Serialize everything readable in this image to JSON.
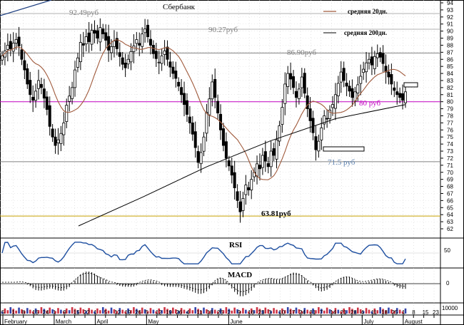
{
  "chart_data": {
    "type": "candlestick",
    "title": "Сбербанк",
    "legend": [
      {
        "label": "средняя 20дн.",
        "color": "#a05a3c"
      },
      {
        "label": "средняя 200дн.",
        "color": "#000000"
      }
    ],
    "price_axis": {
      "min": 62,
      "max": 94,
      "ticks": [
        62,
        63,
        64,
        65,
        66,
        67,
        68,
        69,
        70,
        71,
        72,
        73,
        74,
        75,
        76,
        77,
        78,
        79,
        80,
        81,
        82,
        83,
        84,
        85,
        86,
        87,
        88,
        89,
        90,
        91,
        92,
        93,
        94
      ]
    },
    "horizontal_levels": [
      {
        "value": 92.49,
        "color": "#b0b0b0"
      },
      {
        "value": 90.27,
        "color": "#b0b0b0"
      },
      {
        "value": 86.9,
        "color": "#808080"
      },
      {
        "value": 80.0,
        "color": "#c000c0"
      },
      {
        "value": 71.5,
        "color": "#808080"
      },
      {
        "value": 63.81,
        "color": "#c8a000"
      }
    ],
    "annotations": [
      {
        "text": "92.49руб",
        "value": 92.49,
        "color": "#808080"
      },
      {
        "text": "90.27руб",
        "value": 90.27,
        "color": "#808080"
      },
      {
        "text": "86.90руб",
        "value": 86.9,
        "color": "#808080"
      },
      {
        "text": "80 руб",
        "value": 80.0,
        "color": "#c000c0"
      },
      {
        "text": "71.5 руб",
        "value": 71.5,
        "color": "#5a7fae"
      },
      {
        "text": "63.81руб",
        "value": 63.81,
        "color": "#000000"
      }
    ],
    "day_labels": [
      "5",
      "1",
      "8",
      "15",
      "24",
      "1",
      "9",
      "15",
      "22",
      "1",
      "5",
      "12",
      "19",
      "26",
      "5",
      "12",
      "19",
      "26",
      "4",
      "11",
      "18",
      "25",
      "2",
      "9",
      "16",
      "23",
      "3",
      "10",
      "17",
      "24",
      "31",
      "7",
      "14",
      "21",
      "28",
      "4",
      "11",
      "18",
      "25",
      "1",
      "8",
      "15",
      "23"
    ],
    "month_labels": [
      "February",
      "March",
      "April",
      "May",
      "June",
      "July",
      "August"
    ],
    "rsi": {
      "label": "RSI",
      "tick": 50,
      "color": "#1e4fa0"
    },
    "macd": {
      "label": "MACD",
      "tick": 0
    },
    "volume": {
      "tick": "10000"
    },
    "closes": [
      86.5,
      87.2,
      88.0,
      87.5,
      88.3,
      88.8,
      87.9,
      86.0,
      84.5,
      82.5,
      81.0,
      80.2,
      81.5,
      83.0,
      82.0,
      80.5,
      78.9,
      76.5,
      75.0,
      73.8,
      74.6,
      75.5,
      77.0,
      79.5,
      80.8,
      82.0,
      84.5,
      86.2,
      88.4,
      88.0,
      89.2,
      88.5,
      90.1,
      89.7,
      89.0,
      90.5,
      89.6,
      88.7,
      87.3,
      87.8,
      88.6,
      87.5,
      86.4,
      85.3,
      84.8,
      86.0,
      87.1,
      87.9,
      88.8,
      88.0,
      89.6,
      90.3,
      89.2,
      88.0,
      86.8,
      86.1,
      85.6,
      86.5,
      87.2,
      86.0,
      84.9,
      84.0,
      83.3,
      82.2,
      81.0,
      79.6,
      78.2,
      77.0,
      75.4,
      73.5,
      71.4,
      72.8,
      75.0,
      78.5,
      80.4,
      82.8,
      80.6,
      78.4,
      76.0,
      73.8,
      72.0,
      70.9,
      69.6,
      67.8,
      66.0,
      64.4,
      66.3,
      68.2,
      67.5,
      69.0,
      70.0,
      71.2,
      70.5,
      72.4,
      71.6,
      70.8,
      73.0,
      72.4,
      74.6,
      76.6,
      79.2,
      82.5,
      84.0,
      83.2,
      82.0,
      80.6,
      81.8,
      83.5,
      81.2,
      79.0,
      77.3,
      75.6,
      73.2,
      74.4,
      76.3,
      78.0,
      77.6,
      78.8,
      79.6,
      81.0,
      82.6,
      84.2,
      83.0,
      82.2,
      81.5,
      80.6,
      81.4,
      82.4,
      83.6,
      84.6,
      85.5,
      86.0,
      85.2,
      86.4,
      86.8,
      86.3,
      85.4,
      84.2,
      83.5,
      82.5,
      81.6,
      81.0,
      80.6,
      80.2,
      81.4
    ]
  }
}
